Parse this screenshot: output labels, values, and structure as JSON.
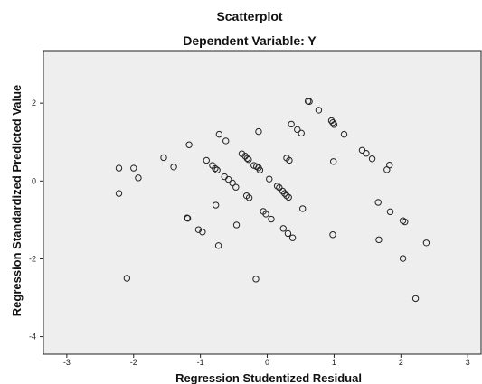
{
  "chart_data": {
    "type": "scatter",
    "title": "Scatterplot",
    "subtitle": "Dependent Variable: Y",
    "xlabel": "Regression Studentized Residual",
    "ylabel": "Regression Standardized Predicted Value",
    "xlim": [
      -3.35,
      3.2
    ],
    "ylim": [
      -4.45,
      3.35
    ],
    "x_ticks": [
      -3,
      -2,
      -1,
      0,
      1,
      2,
      3
    ],
    "y_ticks": [
      -4,
      -2,
      0,
      2
    ],
    "x_tick_labels": [
      "-3",
      "-2",
      "-1",
      "0",
      "1",
      "2",
      "3"
    ],
    "y_tick_labels": [
      "-4",
      "-2",
      "0",
      "2"
    ],
    "grid": false,
    "plot_background": "#eeeeee",
    "marker": "open-circle",
    "points": [
      {
        "x": -2.22,
        "y": 0.33
      },
      {
        "x": -2.0,
        "y": 0.33
      },
      {
        "x": -1.93,
        "y": 0.08
      },
      {
        "x": -2.22,
        "y": -0.32
      },
      {
        "x": -2.1,
        "y": -2.5
      },
      {
        "x": -1.55,
        "y": 0.6
      },
      {
        "x": -1.4,
        "y": 0.36
      },
      {
        "x": -1.2,
        "y": -0.95
      },
      {
        "x": -1.19,
        "y": -0.96
      },
      {
        "x": -1.17,
        "y": 0.93
      },
      {
        "x": -1.03,
        "y": -1.25
      },
      {
        "x": -0.97,
        "y": -1.31
      },
      {
        "x": -0.91,
        "y": 0.53
      },
      {
        "x": -0.82,
        "y": 0.4
      },
      {
        "x": -0.78,
        "y": 0.32
      },
      {
        "x": -0.75,
        "y": 0.28
      },
      {
        "x": -0.77,
        "y": -0.62
      },
      {
        "x": -0.73,
        "y": -1.66
      },
      {
        "x": -0.72,
        "y": 1.2
      },
      {
        "x": -0.62,
        "y": 1.03
      },
      {
        "x": -0.64,
        "y": 0.11
      },
      {
        "x": -0.58,
        "y": 0.04
      },
      {
        "x": -0.52,
        "y": -0.05
      },
      {
        "x": -0.47,
        "y": -0.16
      },
      {
        "x": -0.46,
        "y": -1.13
      },
      {
        "x": -0.38,
        "y": 0.7
      },
      {
        "x": -0.33,
        "y": 0.64
      },
      {
        "x": -0.3,
        "y": 0.58
      },
      {
        "x": -0.28,
        "y": 0.55
      },
      {
        "x": -0.31,
        "y": -0.38
      },
      {
        "x": -0.27,
        "y": -0.43
      },
      {
        "x": -0.2,
        "y": 0.4
      },
      {
        "x": -0.16,
        "y": 0.37
      },
      {
        "x": -0.13,
        "y": 0.34
      },
      {
        "x": -0.11,
        "y": 0.28
      },
      {
        "x": -0.13,
        "y": 1.27
      },
      {
        "x": -0.17,
        "y": -2.52
      },
      {
        "x": -0.06,
        "y": -0.78
      },
      {
        "x": -0.02,
        "y": -0.85
      },
      {
        "x": 0.03,
        "y": 0.05
      },
      {
        "x": 0.06,
        "y": -0.98
      },
      {
        "x": 0.15,
        "y": -0.13
      },
      {
        "x": 0.18,
        "y": -0.17
      },
      {
        "x": 0.23,
        "y": -0.26
      },
      {
        "x": 0.26,
        "y": -0.32
      },
      {
        "x": 0.29,
        "y": -0.38
      },
      {
        "x": 0.32,
        "y": -0.42
      },
      {
        "x": 0.24,
        "y": -1.22
      },
      {
        "x": 0.31,
        "y": -1.35
      },
      {
        "x": 0.38,
        "y": -1.46
      },
      {
        "x": 0.29,
        "y": 0.59
      },
      {
        "x": 0.33,
        "y": 0.53
      },
      {
        "x": 0.36,
        "y": 1.46
      },
      {
        "x": 0.45,
        "y": 1.32
      },
      {
        "x": 0.51,
        "y": 1.23
      },
      {
        "x": 0.53,
        "y": -0.71
      },
      {
        "x": 0.61,
        "y": 2.05
      },
      {
        "x": 0.63,
        "y": 2.04
      },
      {
        "x": 0.77,
        "y": 1.82
      },
      {
        "x": 0.96,
        "y": 1.55
      },
      {
        "x": 0.98,
        "y": 1.5
      },
      {
        "x": 1.0,
        "y": 1.45
      },
      {
        "x": 0.99,
        "y": 0.5
      },
      {
        "x": 0.98,
        "y": -1.38
      },
      {
        "x": 1.15,
        "y": 1.2
      },
      {
        "x": 1.42,
        "y": 0.79
      },
      {
        "x": 1.48,
        "y": 0.71
      },
      {
        "x": 1.57,
        "y": 0.57
      },
      {
        "x": 1.66,
        "y": -0.55
      },
      {
        "x": 1.67,
        "y": -1.51
      },
      {
        "x": 1.79,
        "y": 0.29
      },
      {
        "x": 1.83,
        "y": 0.41
      },
      {
        "x": 1.84,
        "y": -0.79
      },
      {
        "x": 2.03,
        "y": -1.02
      },
      {
        "x": 2.06,
        "y": -1.05
      },
      {
        "x": 2.03,
        "y": -1.99
      },
      {
        "x": 2.22,
        "y": -3.02
      },
      {
        "x": 2.38,
        "y": -1.59
      }
    ]
  }
}
